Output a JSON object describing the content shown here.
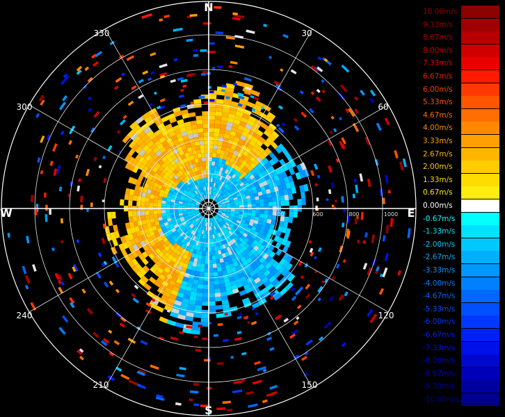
{
  "compass": {
    "north": "N",
    "south": "S",
    "east": "E",
    "west": "W",
    "azimuth_labels": [
      "30",
      "60",
      "120",
      "150",
      "210",
      "240",
      "300",
      "330"
    ]
  },
  "range_labels": [
    "400",
    "600",
    "800",
    "1000"
  ],
  "colorbar": {
    "entries": [
      {
        "label": "10.00m/s",
        "color": "#8c0000"
      },
      {
        "label": "9.33m/s",
        "color": "#a00000"
      },
      {
        "label": "8.67m/s",
        "color": "#b80000"
      },
      {
        "label": "8.00m/s",
        "color": "#d00000"
      },
      {
        "label": "7.33m/s",
        "color": "#e80000"
      },
      {
        "label": "6.67m/s",
        "color": "#ff1a00"
      },
      {
        "label": "6.00m/s",
        "color": "#ff3a00"
      },
      {
        "label": "5.33m/s",
        "color": "#ff5500"
      },
      {
        "label": "4.67m/s",
        "color": "#ff6e00"
      },
      {
        "label": "4.00m/s",
        "color": "#ff8800"
      },
      {
        "label": "3.33m/s",
        "color": "#ffa000"
      },
      {
        "label": "2.67m/s",
        "color": "#ffb600"
      },
      {
        "label": "2.00m/s",
        "color": "#ffcc00"
      },
      {
        "label": "1.33m/s",
        "color": "#ffdc00"
      },
      {
        "label": "0.67m/s",
        "color": "#ffec10"
      },
      {
        "label": "0.00m/s",
        "color": "#ffffff"
      },
      {
        "label": "-0.67m/s",
        "color": "#00ffff"
      },
      {
        "label": "-1.33m/s",
        "color": "#00e0ff"
      },
      {
        "label": "-2.00m/s",
        "color": "#00c8ff"
      },
      {
        "label": "-2.67m/s",
        "color": "#00b0ff"
      },
      {
        "label": "-3.33m/s",
        "color": "#0098ff"
      },
      {
        "label": "-4.00m/s",
        "color": "#0080ff"
      },
      {
        "label": "-4.67m/s",
        "color": "#0068ff"
      },
      {
        "label": "-5.33m/s",
        "color": "#0050ff"
      },
      {
        "label": "-6.00m/s",
        "color": "#0038ff"
      },
      {
        "label": "-6.67m/s",
        "color": "#0020f8"
      },
      {
        "label": "-7.33m/s",
        "color": "#0010e8"
      },
      {
        "label": "-8.00m/s",
        "color": "#0008d0"
      },
      {
        "label": "-8.67m/s",
        "color": "#0000b8"
      },
      {
        "label": "-9.33m/s",
        "color": "#0000a0"
      },
      {
        "label": "-10.00m/s",
        "color": "#00008a"
      }
    ]
  }
}
